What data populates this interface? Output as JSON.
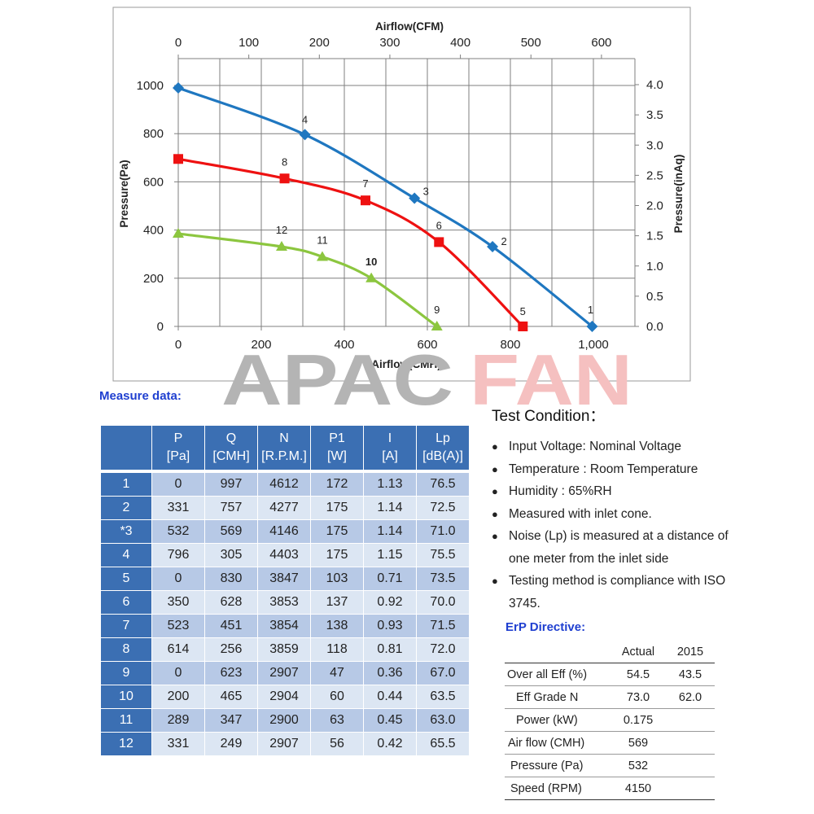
{
  "chart_data": {
    "type": "line",
    "top_axis": {
      "label": "Airflow(CFM)",
      "ticks": [
        0,
        100,
        200,
        300,
        400,
        500,
        600
      ]
    },
    "bottom_axis": {
      "label": "Airflow(CMH)",
      "ticks": [
        "0",
        "200",
        "400",
        "600",
        "800",
        "1,000"
      ],
      "range": [
        0,
        1100
      ]
    },
    "left_axis": {
      "label": "Pressure(Pa)",
      "ticks": [
        0,
        200,
        400,
        600,
        800,
        1000
      ],
      "range": [
        0,
        1000
      ]
    },
    "right_axis": {
      "label": "Pressure(inAq)",
      "ticks": [
        "0.0",
        "0.5",
        "1.0",
        "1.5",
        "2.0",
        "2.5",
        "3.0",
        "3.5",
        "4.0"
      ]
    },
    "grid": true,
    "series": [
      {
        "color": "#1f77c0",
        "marker": "diamond",
        "points": [
          {
            "x": 0,
            "y": 990,
            "label": ""
          },
          {
            "x": 305,
            "y": 796,
            "label": "4"
          },
          {
            "x": 569,
            "y": 532,
            "label": "3"
          },
          {
            "x": 757,
            "y": 331,
            "label": "2"
          },
          {
            "x": 997,
            "y": 0,
            "label": "1"
          }
        ]
      },
      {
        "color": "#ee1111",
        "marker": "square",
        "points": [
          {
            "x": 0,
            "y": 695,
            "label": ""
          },
          {
            "x": 256,
            "y": 614,
            "label": "8"
          },
          {
            "x": 451,
            "y": 523,
            "label": "7"
          },
          {
            "x": 628,
            "y": 350,
            "label": "6"
          },
          {
            "x": 830,
            "y": 0,
            "label": "5"
          }
        ]
      },
      {
        "color": "#8cc63f",
        "marker": "triangle",
        "points": [
          {
            "x": 0,
            "y": 385,
            "label": ""
          },
          {
            "x": 249,
            "y": 331,
            "label": "12"
          },
          {
            "x": 347,
            "y": 289,
            "label": "11"
          },
          {
            "x": 465,
            "y": 200,
            "label": "10"
          },
          {
            "x": 623,
            "y": 0,
            "label": "9"
          }
        ]
      }
    ]
  },
  "watermark": {
    "left_text": "APAC",
    "right_text": "FAN",
    "left_color": "#b4b4b4",
    "right_color": "#f5c0c0"
  },
  "measure": {
    "title": "Measure data:",
    "header": [
      [
        "",
        ""
      ],
      [
        "P",
        "[Pa]"
      ],
      [
        "Q",
        "[CMH]"
      ],
      [
        "N",
        "[R.P.M.]"
      ],
      [
        "P1",
        "[W]"
      ],
      [
        "I",
        "[A]"
      ],
      [
        "Lp",
        "[dB(A)]"
      ]
    ],
    "rows": [
      [
        "1",
        "0",
        "997",
        "4612",
        "172",
        "1.13",
        "76.5"
      ],
      [
        "2",
        "331",
        "757",
        "4277",
        "175",
        "1.14",
        "72.5"
      ],
      [
        "*3",
        "532",
        "569",
        "4146",
        "175",
        "1.14",
        "71.0"
      ],
      [
        "4",
        "796",
        "305",
        "4403",
        "175",
        "1.15",
        "75.5"
      ],
      [
        "5",
        "0",
        "830",
        "3847",
        "103",
        "0.71",
        "73.5"
      ],
      [
        "6",
        "350",
        "628",
        "3853",
        "137",
        "0.92",
        "70.0"
      ],
      [
        "7",
        "523",
        "451",
        "3854",
        "138",
        "0.93",
        "71.5"
      ],
      [
        "8",
        "614",
        "256",
        "3859",
        "118",
        "0.81",
        "72.0"
      ],
      [
        "9",
        "0",
        "623",
        "2907",
        "47",
        "0.36",
        "67.0"
      ],
      [
        "10",
        "200",
        "465",
        "2904",
        "60",
        "0.44",
        "63.5"
      ],
      [
        "11",
        "289",
        "347",
        "2900",
        "63",
        "0.45",
        "63.0"
      ],
      [
        "12",
        "331",
        "249",
        "2907",
        "56",
        "0.42",
        "65.5"
      ]
    ]
  },
  "test_condition": {
    "title": "Test Condition：",
    "items": [
      "Input Voltage: Nominal Voltage",
      "Temperature : Room Temperature",
      "Humidity : 65%RH",
      "Measured with inlet cone.",
      "Noise (Lp) is measured at a distance of one meter from the inlet side",
      "Testing method is compliance with ISO 3745."
    ]
  },
  "erp": {
    "title": "ErP Directive:",
    "header": [
      "",
      "Actual",
      "2015"
    ],
    "rows": [
      [
        "Over all Eff (%)",
        "54.5",
        "43.5"
      ],
      [
        "Eff Grade N",
        "73.0",
        "62.0"
      ],
      [
        "Power (kW)",
        "0.175",
        ""
      ],
      [
        "Air flow (CMH)",
        "569",
        ""
      ],
      [
        "Pressure (Pa)",
        "532",
        ""
      ],
      [
        "Speed (RPM)",
        "4150",
        ""
      ]
    ]
  }
}
